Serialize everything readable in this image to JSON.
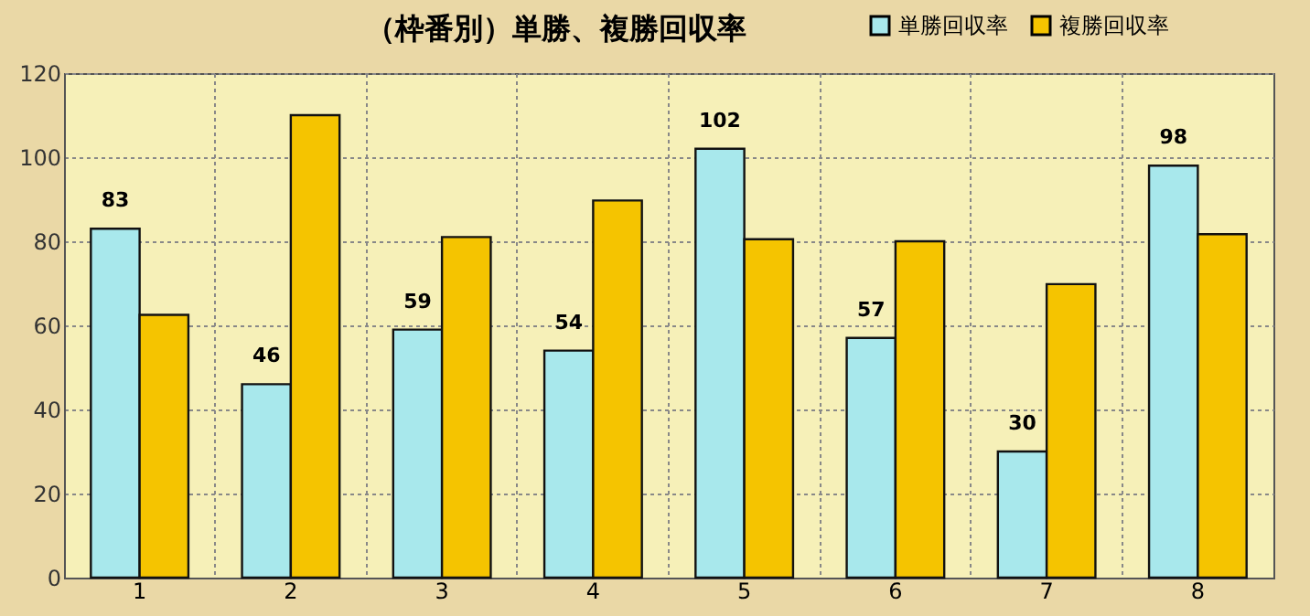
{
  "chart_data": {
    "type": "bar",
    "title": "（枠番別）単勝、複勝回収率",
    "categories": [
      "1",
      "2",
      "3",
      "4",
      "5",
      "6",
      "7",
      "8"
    ],
    "series": [
      {
        "name": "単勝回収率",
        "color": "#a8e8ec",
        "values": [
          83,
          46,
          59,
          54,
          102,
          57,
          30,
          98
        ],
        "value_labels": [
          "83",
          "46",
          "59",
          "54",
          "102",
          "57",
          "30",
          "98"
        ]
      },
      {
        "name": "複勝回収率",
        "color": "#f5c400",
        "values": [
          62.5,
          110,
          81,
          89.7,
          80.5,
          80,
          69.8,
          81.7
        ]
      }
    ],
    "ylim": [
      0,
      120
    ],
    "yticks": [
      0,
      20,
      40,
      60,
      80,
      100,
      120
    ],
    "grid": true,
    "legend": "top right"
  }
}
